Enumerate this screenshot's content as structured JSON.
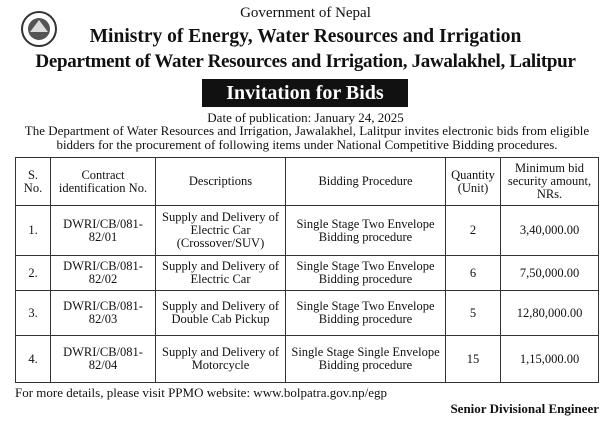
{
  "header": {
    "government": "Government of Nepal",
    "ministry": "Ministry of Energy, Water Resources and Irrigation",
    "department": "Department of Water Resources and Irrigation, Jawalakhel, Lalitpur",
    "title": "Invitation for Bids"
  },
  "date": "Date of publication: January 24, 2025",
  "intro": "The Department of Water Resources and Irrigation, Jawalakhel, Lalitpur invites electronic bids from eligible bidders for the procurement of following items under National Competitive Bidding procedures.",
  "table": {
    "columns": [
      "S. No.",
      "Contract identification No.",
      "Descriptions",
      "Bidding Procedure",
      "Quantity (Unit)",
      "Minimum bid security amount, NRs."
    ],
    "rows": [
      [
        "1.",
        "DWRI/CB/081-82/01",
        "Supply and Delivery of Electric Car (Crossover/SUV)",
        "Single Stage Two Envelope Bidding procedure",
        "2",
        "3,40,000.00"
      ],
      [
        "2.",
        "DWRI/CB/081-82/02",
        "Supply and Delivery of Electric Car",
        "Single Stage Two Envelope Bidding procedure",
        "6",
        "7,50,000.00"
      ],
      [
        "3.",
        "DWRI/CB/081-82/03",
        "Supply and Delivery of Double Cab Pickup",
        "Single Stage Two Envelope Bidding procedure",
        "5",
        "12,80,000.00"
      ],
      [
        "4.",
        "DWRI/CB/081-82/04",
        "Supply and Delivery of Motorcycle",
        "Single Stage Single Envelope Bidding procedure",
        "15",
        "1,15,000.00"
      ]
    ]
  },
  "footer": {
    "details": "For more details, please visit PPMO website: www.bolpatra.gov.np/egp",
    "signatory": "Senior Divisional Engineer"
  }
}
